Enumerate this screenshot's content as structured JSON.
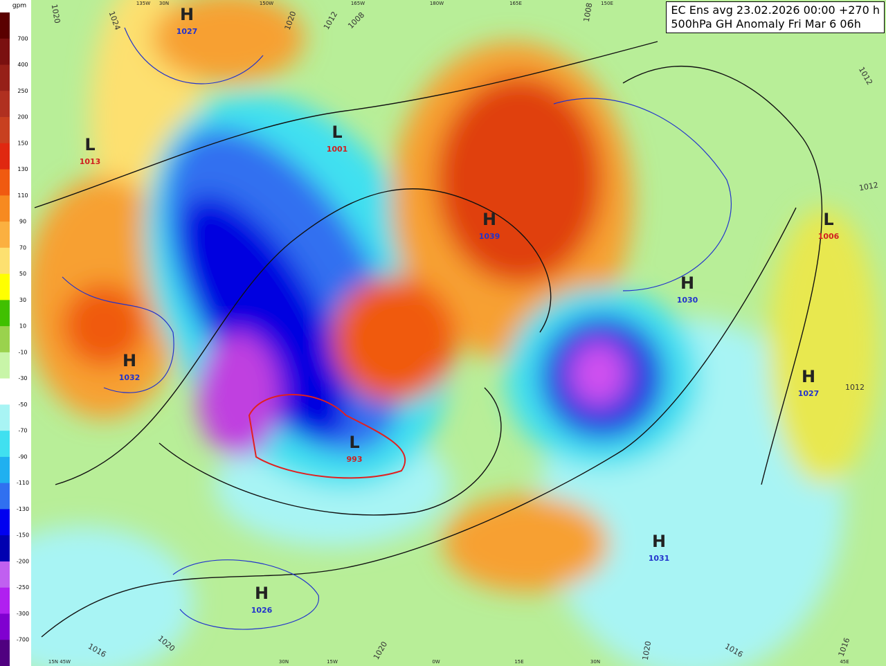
{
  "header": {
    "line1": "EC Ens avg 23.02.2026 00:00 +270 h",
    "line2": "500hPa GH Anomaly Fri Mar 6 06h"
  },
  "legend": {
    "unit": "gpm",
    "ticks": [
      "700",
      "400",
      "250",
      "200",
      "150",
      "130",
      "110",
      "90",
      "70",
      "50",
      "30",
      "10",
      "-10",
      "-30",
      "-50",
      "-70",
      "-90",
      "-110",
      "-130",
      "-150",
      "-200",
      "-250",
      "-300",
      "-700"
    ],
    "colors": [
      "#5a0000",
      "#7a1010",
      "#962018",
      "#b03020",
      "#c84020",
      "#e02810",
      "#f05a10",
      "#f78a20",
      "#fbb040",
      "#fde070",
      "#ffff00",
      "#40c000",
      "#9ad24d",
      "#c8f5a8",
      "#ffffff",
      "#a8f4f4",
      "#40e0f0",
      "#20b0f0",
      "#3070f0",
      "#0000f0",
      "#0000b0",
      "#c060f0",
      "#b020f0",
      "#8000d0",
      "#500080"
    ]
  },
  "centers": [
    {
      "type": "H",
      "value": "1027"
    },
    {
      "type": "L",
      "value": "1013"
    },
    {
      "type": "H",
      "value": "1032"
    },
    {
      "type": "L",
      "value": "1001"
    },
    {
      "type": "H",
      "value": "1039"
    },
    {
      "type": "H",
      "value": "1030"
    },
    {
      "type": "L",
      "value": "993"
    },
    {
      "type": "H",
      "value": "1026"
    },
    {
      "type": "L",
      "value": "1006"
    },
    {
      "type": "H",
      "value": "1027"
    },
    {
      "type": "H",
      "value": "1031"
    }
  ],
  "isobar_labels": [
    "1020",
    "1024",
    "1020",
    "1012",
    "1008",
    "1008",
    "1012",
    "1012",
    "1012",
    "1016",
    "1020",
    "1020",
    "1020",
    "1016",
    "1016"
  ],
  "longitude_labels": [
    "135W",
    "30N",
    "150W",
    "165W",
    "180W",
    "165E",
    "150E",
    "15N 45W",
    "30N",
    "15W",
    "0W",
    "15E",
    "30N",
    "45E"
  ]
}
